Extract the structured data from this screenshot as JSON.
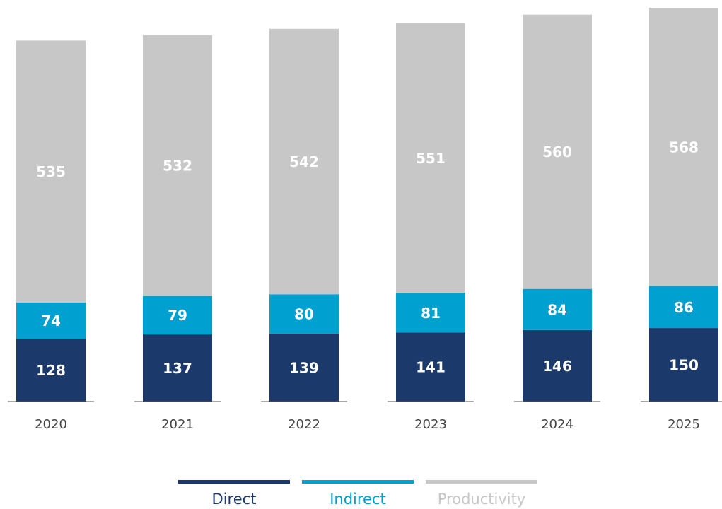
{
  "chart_data": {
    "type": "stacked_bar",
    "categories": [
      "2020",
      "2021",
      "2022",
      "2023",
      "2024",
      "2025"
    ],
    "series": [
      {
        "name": "Direct",
        "color": "#1b3a6b",
        "values": [
          128,
          137,
          139,
          141,
          146,
          150
        ]
      },
      {
        "name": "Indirect",
        "color": "#00a0d1",
        "values": [
          74,
          79,
          80,
          81,
          84,
          86
        ]
      },
      {
        "name": "Productivity",
        "color": "#c8c7c8",
        "values": [
          535,
          532,
          542,
          551,
          560,
          568
        ]
      }
    ]
  }
}
